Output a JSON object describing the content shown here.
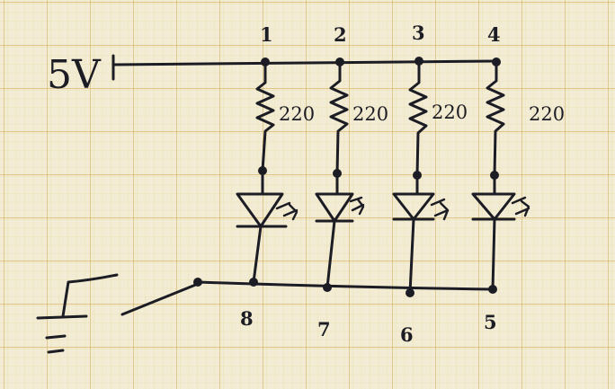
{
  "supply": {
    "label": "5V"
  },
  "top_nodes": [
    "1",
    "2",
    "3",
    "4"
  ],
  "resistors": [
    "220",
    "220",
    "220",
    "220"
  ],
  "bottom_nodes": [
    "8",
    "7",
    "6",
    "5"
  ],
  "colors": {
    "paper": "#f3ecd4",
    "grid_major": "#d9b870",
    "grid_minor": "#eadcaa",
    "ink": "#1c1c24"
  }
}
